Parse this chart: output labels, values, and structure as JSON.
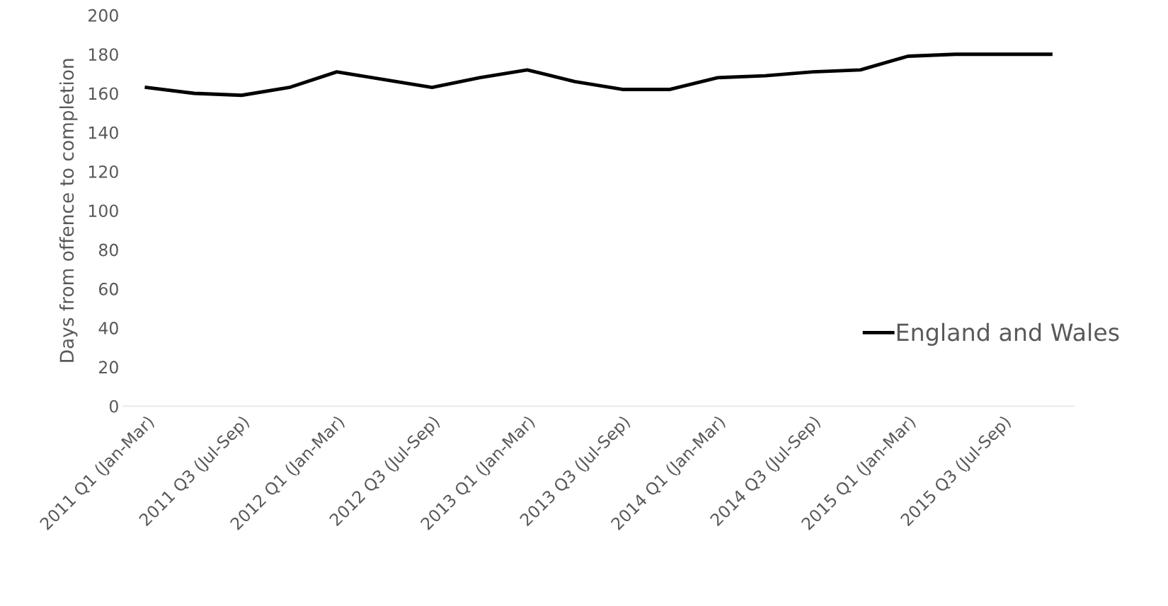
{
  "chart_data": {
    "type": "line",
    "ylabel": "Days from offence to completion",
    "categories": [
      "2011 Q1 (Jan-Mar)",
      null,
      "2011 Q3 (Jul-Sep)",
      null,
      "2012 Q1 (Jan-Mar)",
      null,
      "2012 Q3 (Jul-Sep)",
      null,
      "2013 Q1 (Jan-Mar)",
      null,
      "2013 Q3 (Jul-Sep)",
      null,
      "2014 Q1 (Jan-Mar)",
      null,
      "2014 Q3 (Jul-Sep)",
      null,
      "2015 Q1 (Jan-Mar)",
      null,
      "2015 Q3 (Jul-Sep)",
      null
    ],
    "series": [
      {
        "name": "England and Wales",
        "color": "#000000",
        "values": [
          163,
          160,
          159,
          163,
          171,
          167,
          163,
          168,
          172,
          166,
          162,
          162,
          168,
          169,
          171,
          172,
          179,
          180,
          180,
          180
        ]
      }
    ],
    "ylim": [
      0,
      200
    ],
    "yticks": [
      0,
      20,
      40,
      60,
      80,
      100,
      120,
      140,
      160,
      180,
      200
    ],
    "legend": "lower right",
    "grid": false,
    "marker": "none",
    "line_style": "solid"
  }
}
